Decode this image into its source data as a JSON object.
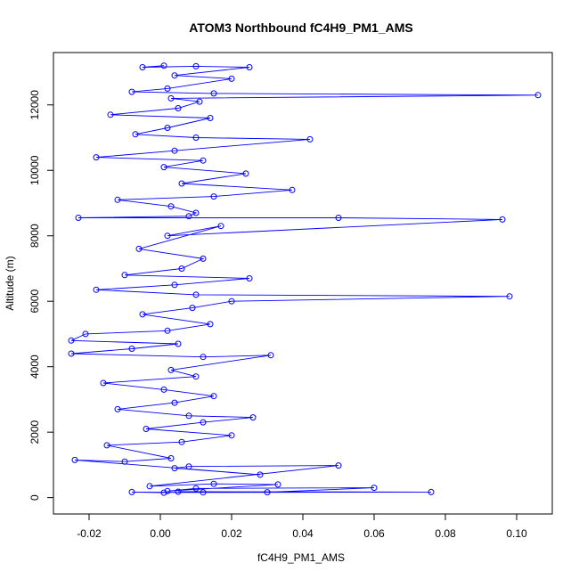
{
  "chart_data": {
    "type": "scatter",
    "title": "ATOM3 Northbound fC4H9_PM1_AMS",
    "xlabel": "fC4H9_PM1_AMS",
    "ylabel": "Altitude (m)",
    "xlim": [
      -0.03,
      0.11
    ],
    "ylim": [
      -500,
      13600
    ],
    "x_ticks": [
      -0.02,
      0.0,
      0.02,
      0.04,
      0.06,
      0.08,
      0.1
    ],
    "x_tick_labels": [
      "-0.02",
      "0.00",
      "0.02",
      "0.04",
      "0.06",
      "0.08",
      "0.10"
    ],
    "y_ticks": [
      0,
      2000,
      4000,
      6000,
      8000,
      10000,
      12000
    ],
    "y_tick_labels": [
      "0",
      "2000",
      "4000",
      "6000",
      "8000",
      "10000",
      "12000"
    ],
    "grid": false,
    "connected": true,
    "marker": "open-circle",
    "series_color": "#0000ff",
    "series": [
      {
        "points": [
          [
            0.001,
            150
          ],
          [
            -0.008,
            170
          ],
          [
            0.012,
            160
          ],
          [
            0.076,
            170
          ],
          [
            0.005,
            180
          ],
          [
            0.03,
            165
          ],
          [
            0.06,
            300
          ],
          [
            0.01,
            280
          ],
          [
            0.002,
            200
          ],
          [
            0.033,
            400
          ],
          [
            0.015,
            420
          ],
          [
            -0.003,
            350
          ],
          [
            0.05,
            980
          ],
          [
            0.008,
            950
          ],
          [
            0.004,
            900
          ],
          [
            0.028,
            700
          ],
          [
            -0.024,
            1150
          ],
          [
            -0.01,
            1100
          ],
          [
            0.003,
            1200
          ],
          [
            -0.015,
            1600
          ],
          [
            0.006,
            1700
          ],
          [
            0.02,
            1900
          ],
          [
            -0.004,
            2100
          ],
          [
            0.012,
            2300
          ],
          [
            0.026,
            2450
          ],
          [
            0.008,
            2500
          ],
          [
            -0.012,
            2700
          ],
          [
            0.004,
            2900
          ],
          [
            0.015,
            3100
          ],
          [
            0.001,
            3300
          ],
          [
            -0.016,
            3500
          ],
          [
            0.01,
            3700
          ],
          [
            0.003,
            3900
          ],
          [
            0.031,
            4350
          ],
          [
            0.012,
            4300
          ],
          [
            -0.025,
            4400
          ],
          [
            -0.008,
            4550
          ],
          [
            0.005,
            4700
          ],
          [
            -0.025,
            4800
          ],
          [
            -0.021,
            5000
          ],
          [
            0.002,
            5100
          ],
          [
            0.014,
            5300
          ],
          [
            -0.005,
            5600
          ],
          [
            0.009,
            5800
          ],
          [
            0.02,
            6000
          ],
          [
            0.098,
            6150
          ],
          [
            0.01,
            6200
          ],
          [
            -0.018,
            6350
          ],
          [
            0.004,
            6500
          ],
          [
            0.025,
            6700
          ],
          [
            -0.01,
            6800
          ],
          [
            0.006,
            7000
          ],
          [
            0.012,
            7300
          ],
          [
            -0.006,
            7600
          ],
          [
            0.017,
            8300
          ],
          [
            0.002,
            8000
          ],
          [
            0.096,
            8500
          ],
          [
            0.05,
            8550
          ],
          [
            -0.023,
            8550
          ],
          [
            0.008,
            8600
          ],
          [
            0.01,
            8700
          ],
          [
            0.003,
            8900
          ],
          [
            -0.012,
            9100
          ],
          [
            0.015,
            9200
          ],
          [
            0.037,
            9400
          ],
          [
            0.006,
            9600
          ],
          [
            0.024,
            9900
          ],
          [
            0.001,
            10100
          ],
          [
            0.012,
            10300
          ],
          [
            -0.018,
            10400
          ],
          [
            0.004,
            10600
          ],
          [
            0.042,
            10950
          ],
          [
            0.01,
            11000
          ],
          [
            -0.007,
            11100
          ],
          [
            0.002,
            11300
          ],
          [
            0.014,
            11600
          ],
          [
            -0.014,
            11700
          ],
          [
            0.005,
            11900
          ],
          [
            0.011,
            12100
          ],
          [
            0.003,
            12200
          ],
          [
            0.106,
            12300
          ],
          [
            0.015,
            12350
          ],
          [
            -0.008,
            12400
          ],
          [
            0.002,
            12500
          ],
          [
            0.02,
            12800
          ],
          [
            0.004,
            12900
          ],
          [
            0.025,
            13150
          ],
          [
            0.01,
            13180
          ],
          [
            -0.005,
            13150
          ],
          [
            0.001,
            13200
          ]
        ]
      }
    ]
  }
}
